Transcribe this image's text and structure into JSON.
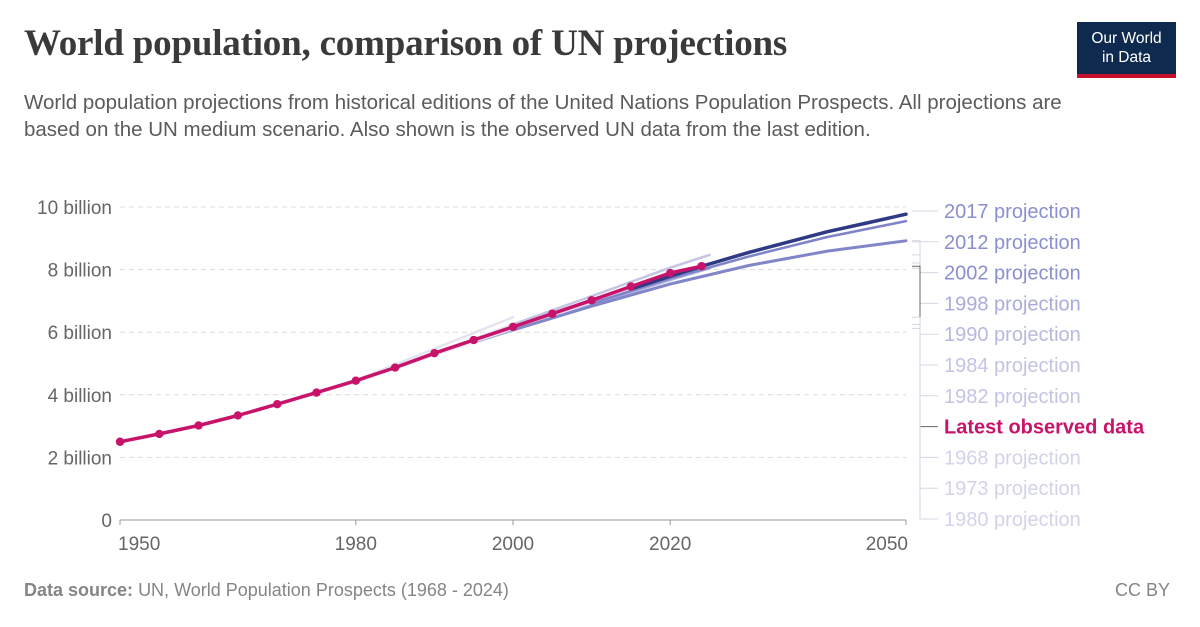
{
  "header": {
    "title": "World population, comparison of UN projections",
    "subtitle": "World population projections from historical editions of the United Nations Population Prospects. All projections are based on the UN medium scenario. Also shown is the observed UN data from the last edition."
  },
  "logo": {
    "line1": "Our World",
    "line2": "in Data",
    "background": "#0f2a4f",
    "accent": "#c8102e"
  },
  "footer": {
    "source_label": "Data source:",
    "source_text": "UN, World Population Prospects (1968 - 2024)",
    "license": "CC BY"
  },
  "chart_data": {
    "type": "line",
    "title": "World population, comparison of UN projections",
    "xlim": [
      1950,
      2050
    ],
    "ylim": [
      0,
      10
    ],
    "x_ticks": [
      1950,
      1980,
      2000,
      2020,
      2050
    ],
    "y_ticks": [
      {
        "value": 0,
        "label": "0"
      },
      {
        "value": 2,
        "label": "2 billion"
      },
      {
        "value": 4,
        "label": "4 billion"
      },
      {
        "value": 6,
        "label": "6 billion"
      },
      {
        "value": 8,
        "label": "8 billion"
      },
      {
        "value": 10,
        "label": "10 billion"
      }
    ],
    "grid": "horizontal",
    "legend_placement": "right",
    "series": [
      {
        "name": "2017 projection",
        "color": "#2f3a84",
        "width": 3.5,
        "x": [
          2015,
          2020,
          2025,
          2030,
          2035,
          2040,
          2045,
          2050
        ],
        "y": [
          7.38,
          7.79,
          8.18,
          8.55,
          8.88,
          9.21,
          9.49,
          9.77
        ]
      },
      {
        "name": "2012 projection",
        "color": "#7f84c8",
        "width": 2.5,
        "x": [
          2010,
          2020,
          2030,
          2040,
          2050
        ],
        "y": [
          6.92,
          7.72,
          8.42,
          9.04,
          9.55
        ]
      },
      {
        "name": "2002 projection",
        "color": "#8186c9",
        "width": 3,
        "x": [
          2000,
          2010,
          2020,
          2030,
          2040,
          2050
        ],
        "y": [
          6.07,
          6.83,
          7.54,
          8.13,
          8.59,
          8.92
        ]
      },
      {
        "name": "1998 projection",
        "color": "#a9acda",
        "width": 2.5,
        "x": [
          1995,
          2000,
          2010,
          2020,
          2025
        ],
        "y": [
          5.67,
          6.06,
          6.88,
          7.67,
          8.04
        ]
      },
      {
        "name": "1990 projection",
        "color": "#c4c4e4",
        "width": 2.5,
        "x": [
          1990,
          2000,
          2010,
          2020,
          2025
        ],
        "y": [
          5.29,
          6.25,
          7.15,
          8.06,
          8.47
        ]
      },
      {
        "name": "1984 projection",
        "color": "#d7d7ec",
        "width": 2.5,
        "x": [
          1985,
          1990,
          2000,
          2010,
          2020,
          2025
        ],
        "y": [
          4.85,
          5.27,
          6.12,
          6.95,
          7.8,
          8.21
        ]
      },
      {
        "name": "1982 projection",
        "color": "#dddded",
        "width": 2.5,
        "x": [
          1980,
          1990,
          2000,
          2010,
          2020,
          2025
        ],
        "y": [
          4.43,
          5.27,
          6.12,
          6.95,
          7.78,
          8.21
        ]
      },
      {
        "name": "Latest observed data",
        "color": "#c8136b",
        "width": 3.5,
        "markers": true,
        "x": [
          1950,
          1955,
          1960,
          1965,
          1970,
          1975,
          1980,
          1985,
          1990,
          1995,
          2000,
          2005,
          2010,
          2015,
          2020,
          2024
        ],
        "y": [
          2.5,
          2.75,
          3.02,
          3.34,
          3.7,
          4.07,
          4.45,
          4.87,
          5.33,
          5.75,
          6.17,
          6.59,
          7.02,
          7.46,
          7.89,
          8.11
        ]
      },
      {
        "name": "1968 projection",
        "color": "#e4e4f1",
        "width": 2.5,
        "x": [
          1965,
          1980,
          2000
        ],
        "y": [
          3.34,
          4.46,
          6.48
        ]
      },
      {
        "name": "1973 projection",
        "color": "#e6e6f2",
        "width": 2.5,
        "x": [
          1970,
          1980,
          2000
        ],
        "y": [
          3.7,
          4.4,
          6.25
        ]
      },
      {
        "name": "1980 projection",
        "color": "#e8e8f3",
        "width": 2.5,
        "x": [
          1975,
          1980,
          2000
        ],
        "y": [
          4.07,
          4.43,
          6.12
        ]
      }
    ],
    "legend_order": [
      "2017 projection",
      "2012 projection",
      "2002 projection",
      "1998 projection",
      "1990 projection",
      "1984 projection",
      "1982 projection",
      "Latest observed data",
      "1968 projection",
      "1973 projection",
      "1980 projection"
    ],
    "legend_colors": {
      "2017 projection": "#8a8fcf",
      "2012 projection": "#8a8fcf",
      "2002 projection": "#8a8fcf",
      "1998 projection": "#a9acdb",
      "1990 projection": "#b7b9e0",
      "1984 projection": "#c3c4e5",
      "1982 projection": "#c3c4e5",
      "Latest observed data": "#c8136b",
      "1968 projection": "#d2d3ea",
      "1973 projection": "#d2d3ea",
      "1980 projection": "#d2d3ea"
    }
  }
}
